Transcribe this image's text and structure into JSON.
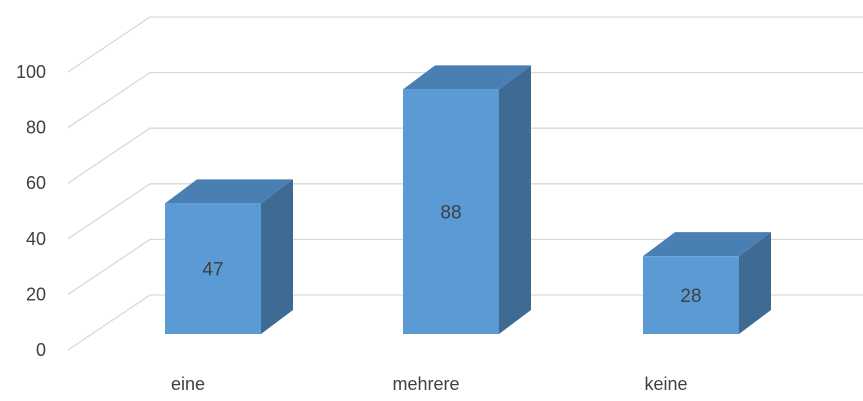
{
  "chart_data": {
    "type": "bar",
    "categories": [
      "eine",
      "mehrere",
      "keine"
    ],
    "values": [
      47,
      88,
      28
    ],
    "data_labels": [
      "47",
      "88",
      "28"
    ],
    "ylim": [
      0,
      100
    ],
    "yticks": [
      0,
      20,
      40,
      60,
      80,
      100
    ],
    "ytick_labels": [
      "0",
      "20",
      "40",
      "60",
      "80",
      "100"
    ],
    "grid": true,
    "legend": "none",
    "style": "3d-column",
    "colors": {
      "bar_front": "#5B9BD5",
      "bar_top": "#4A7FB3",
      "bar_side": "#3E6A93",
      "grid": "#D9D9D9",
      "text": "#404040"
    }
  }
}
